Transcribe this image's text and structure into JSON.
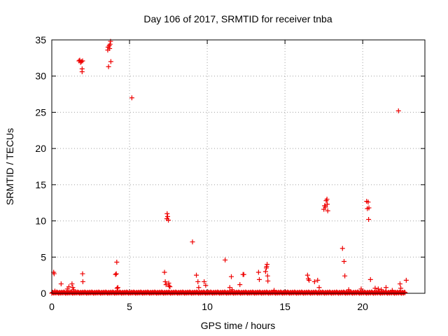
{
  "chart_data": {
    "type": "scatter",
    "title": "Day 106 of 2017, SRMTID for receiver tnba",
    "xlabel": "GPS time / hours",
    "ylabel": "SRMTID / TECUs",
    "xlim": [
      0,
      24
    ],
    "ylim": [
      0,
      35
    ],
    "xticks": [
      0,
      5,
      10,
      15,
      20
    ],
    "yticks": [
      0,
      5,
      10,
      15,
      20,
      25,
      30,
      35
    ],
    "grid": true,
    "marker": "+",
    "color": "#ee0000",
    "series": [
      {
        "name": "SRMTID",
        "points": [
          [
            0.12,
            2.9
          ],
          [
            0.15,
            2.7
          ],
          [
            0.2,
            0.3
          ],
          [
            0.6,
            1.3
          ],
          [
            1.0,
            0.6
          ],
          [
            1.1,
            0.9
          ],
          [
            1.3,
            1.3
          ],
          [
            1.35,
            0.8
          ],
          [
            1.4,
            0.5
          ],
          [
            1.75,
            32.1
          ],
          [
            1.8,
            32.2
          ],
          [
            1.85,
            31.9
          ],
          [
            1.9,
            32.0
          ],
          [
            1.95,
            31.0
          ],
          [
            1.95,
            30.6
          ],
          [
            1.98,
            32.1
          ],
          [
            1.98,
            2.7
          ],
          [
            2.0,
            1.6
          ],
          [
            3.6,
            33.6
          ],
          [
            3.62,
            34.0
          ],
          [
            3.65,
            31.3
          ],
          [
            3.7,
            34.2
          ],
          [
            3.72,
            33.8
          ],
          [
            3.75,
            34.4
          ],
          [
            3.78,
            34.8
          ],
          [
            3.8,
            32.0
          ],
          [
            4.1,
            2.6
          ],
          [
            4.15,
            2.7
          ],
          [
            4.18,
            4.3
          ],
          [
            4.2,
            0.7
          ],
          [
            4.25,
            0.8
          ],
          [
            5.15,
            27.0
          ],
          [
            7.25,
            2.9
          ],
          [
            7.3,
            1.6
          ],
          [
            7.35,
            1.2
          ],
          [
            7.4,
            10.3
          ],
          [
            7.42,
            11.0
          ],
          [
            7.45,
            10.6
          ],
          [
            7.5,
            10.1
          ],
          [
            7.52,
            1.4
          ],
          [
            7.55,
            1.0
          ],
          [
            7.6,
            0.9
          ],
          [
            9.05,
            7.1
          ],
          [
            9.3,
            2.5
          ],
          [
            9.4,
            1.6
          ],
          [
            9.45,
            0.8
          ],
          [
            9.8,
            1.6
          ],
          [
            9.9,
            1.1
          ],
          [
            11.15,
            4.6
          ],
          [
            11.45,
            0.8
          ],
          [
            11.55,
            2.3
          ],
          [
            11.6,
            0.5
          ],
          [
            12.1,
            1.2
          ],
          [
            12.3,
            2.6
          ],
          [
            12.35,
            2.6
          ],
          [
            13.3,
            2.9
          ],
          [
            13.35,
            1.9
          ],
          [
            13.75,
            3.0
          ],
          [
            13.8,
            3.5
          ],
          [
            13.82,
            3.7
          ],
          [
            13.85,
            4.0
          ],
          [
            13.88,
            2.4
          ],
          [
            13.9,
            1.7
          ],
          [
            14.3,
            0.4
          ],
          [
            16.45,
            2.5
          ],
          [
            16.5,
            2.0
          ],
          [
            16.55,
            1.8
          ],
          [
            16.9,
            1.6
          ],
          [
            17.1,
            1.8
          ],
          [
            17.2,
            0.8
          ],
          [
            17.5,
            11.6
          ],
          [
            17.55,
            12.1
          ],
          [
            17.6,
            11.9
          ],
          [
            17.65,
            12.8
          ],
          [
            17.7,
            13.0
          ],
          [
            17.72,
            12.3
          ],
          [
            17.75,
            11.4
          ],
          [
            18.7,
            6.2
          ],
          [
            18.8,
            4.4
          ],
          [
            18.85,
            2.4
          ],
          [
            19.1,
            0.5
          ],
          [
            19.9,
            0.6
          ],
          [
            20.25,
            12.7
          ],
          [
            20.3,
            11.7
          ],
          [
            20.35,
            12.6
          ],
          [
            20.38,
            10.2
          ],
          [
            20.4,
            11.8
          ],
          [
            20.5,
            1.9
          ],
          [
            20.8,
            0.7
          ],
          [
            21.0,
            0.6
          ],
          [
            21.2,
            0.5
          ],
          [
            21.5,
            0.8
          ],
          [
            21.9,
            0.4
          ],
          [
            22.3,
            25.2
          ],
          [
            22.4,
            1.3
          ],
          [
            22.45,
            0.7
          ],
          [
            22.8,
            1.8
          ]
        ],
        "baseline": {
          "x_start": 0.0,
          "x_end": 22.75,
          "y_min": 0.0,
          "y_max": 0.2
        }
      }
    ]
  }
}
